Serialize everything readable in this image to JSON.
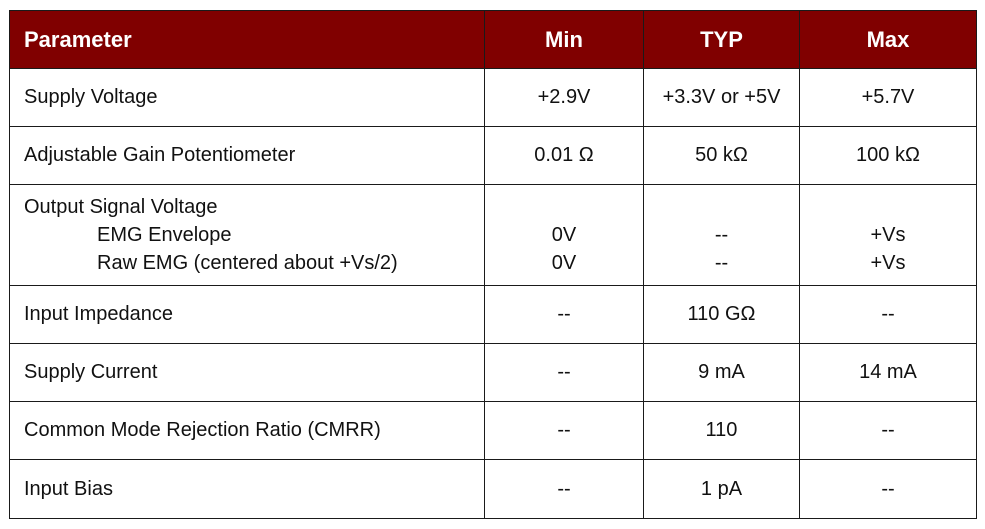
{
  "table": {
    "headers": [
      "Parameter",
      "Min",
      "TYP",
      "Max"
    ],
    "rows": [
      {
        "parameter": "Supply Voltage",
        "min": "+2.9V",
        "typ": "+3.3V or +5V",
        "max": "+5.7V"
      },
      {
        "parameter": "Adjustable Gain Potentiometer",
        "min": "0.01 Ω",
        "typ": "50 kΩ",
        "max": "100 kΩ"
      },
      {
        "parameter": "Output Signal Voltage",
        "sub": [
          {
            "parameter": "EMG Envelope",
            "min": "0V",
            "typ": "--",
            "max": "+Vs"
          },
          {
            "parameter": "Raw EMG (centered about +Vs/2)",
            "min": "0V",
            "typ": "--",
            "max": "+Vs"
          }
        ]
      },
      {
        "parameter": "Input Impedance",
        "min": "--",
        "typ": "110 GΩ",
        "max": "--"
      },
      {
        "parameter": "Supply Current",
        "min": "--",
        "typ": "9 mA",
        "max": "14 mA"
      },
      {
        "parameter": "Common Mode Rejection Ratio (CMRR)",
        "min": "--",
        "typ": "110",
        "max": "--"
      },
      {
        "parameter": "Input Bias",
        "min": "--",
        "typ": "1 pA",
        "max": "--"
      }
    ]
  },
  "colors": {
    "header_bg": "#800000",
    "header_text": "#ffffff",
    "border": "#1a1a1a"
  }
}
